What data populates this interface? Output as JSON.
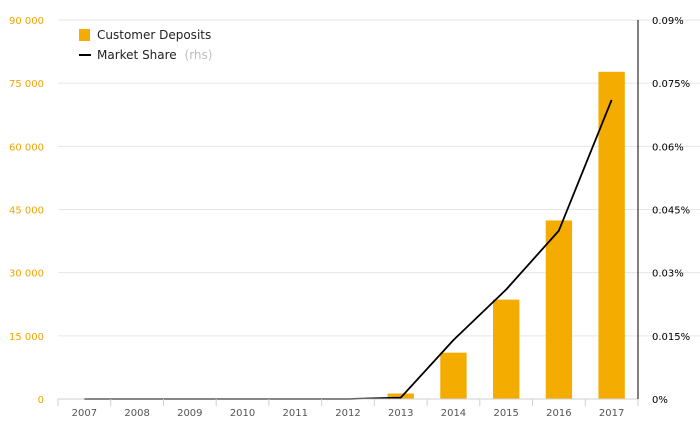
{
  "chart_data": {
    "type": "bar",
    "categories": [
      "2007",
      "2008",
      "2009",
      "2010",
      "2011",
      "2012",
      "2013",
      "2014",
      "2015",
      "2016",
      "2017"
    ],
    "series": [
      {
        "name": "Customer Deposits",
        "type": "bar",
        "axis": "left",
        "color": "#f5ac00",
        "values": [
          0,
          0,
          0,
          0,
          0,
          0,
          1300,
          11000,
          23600,
          42400,
          77700
        ]
      },
      {
        "name": "Market Share",
        "name_suffix": "(rhs)",
        "type": "line",
        "axis": "right",
        "color": "#000000",
        "values": [
          0,
          0,
          0,
          0,
          0,
          0,
          0.0003,
          0.014,
          0.026,
          0.04,
          0.071
        ]
      }
    ],
    "y_left": {
      "min": 0,
      "max": 90000,
      "ticks": [
        0,
        15000,
        30000,
        45000,
        60000,
        75000,
        90000
      ],
      "tick_labels": [
        "0",
        "15 000",
        "30 000",
        "45 000",
        "60 000",
        "75 000",
        "90 000"
      ],
      "color": "#f0a500"
    },
    "y_right": {
      "min": 0,
      "max": 0.09,
      "ticks": [
        0,
        0.015,
        0.03,
        0.045,
        0.06,
        0.075,
        0.09
      ],
      "tick_labels": [
        "0%",
        "0.015%",
        "0.03%",
        "0.045%",
        "0.06%",
        "0.075%",
        "0.09%"
      ],
      "color": "#000000"
    },
    "grid": true,
    "legend_position": "top-left",
    "title": "",
    "xlabel": "",
    "ylabel": ""
  }
}
